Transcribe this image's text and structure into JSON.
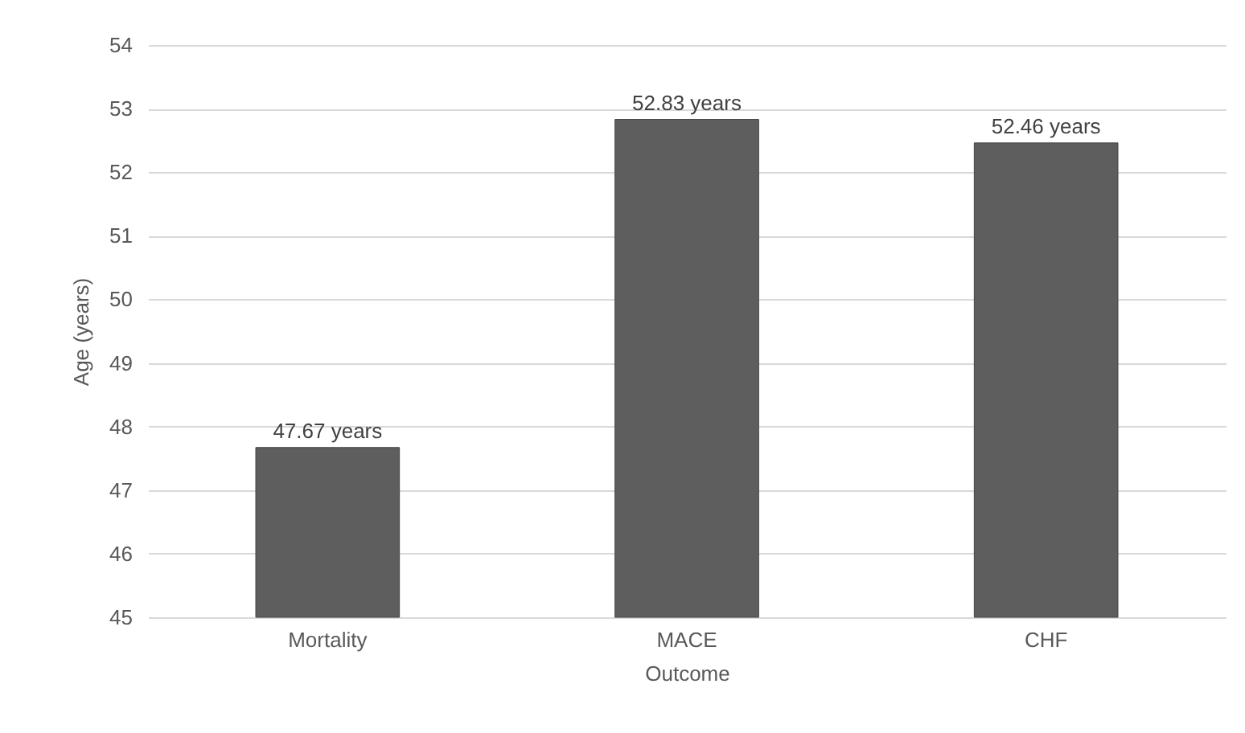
{
  "chart_data": {
    "type": "bar",
    "xlabel": "Outcome",
    "ylabel": "Age (years)",
    "categories": [
      "Mortality",
      "MACE",
      "CHF"
    ],
    "values": [
      47.67,
      52.83,
      52.46
    ],
    "value_labels": [
      "47.67 years",
      "52.83 years",
      "52.46 years"
    ],
    "color": "#5e5e5e",
    "ylim": [
      45,
      54
    ],
    "yticks": [
      45,
      46,
      47,
      48,
      49,
      50,
      51,
      52,
      53,
      54
    ],
    "grid": "y"
  }
}
